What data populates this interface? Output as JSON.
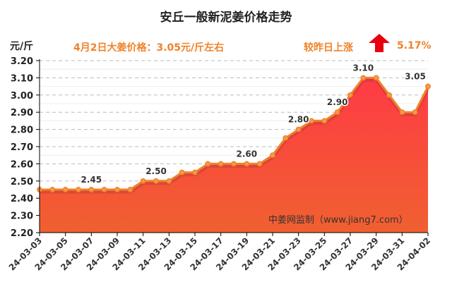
{
  "chart_data": {
    "type": "area",
    "title": "安丘一般新泥姜价格走势",
    "ylabel": "元/斤",
    "annotation_price": "4月2日大姜价格：3.05元/斤左右",
    "annotation_change_label": "较昨日上涨",
    "annotation_change_value": "5.17%",
    "change_direction": "up",
    "source": "中姜网监制（www.jiang7.com）",
    "ylim": [
      2.2,
      3.2
    ],
    "yticks": [
      "2.20",
      "2.30",
      "2.40",
      "2.50",
      "2.60",
      "2.70",
      "2.80",
      "2.90",
      "3.00",
      "3.10",
      "3.20"
    ],
    "grid": true,
    "x": [
      "24-03-03",
      "24-03-04",
      "24-03-05",
      "24-03-06",
      "24-03-07",
      "24-03-08",
      "24-03-09",
      "24-03-10",
      "24-03-11",
      "24-03-12",
      "24-03-13",
      "24-03-14",
      "24-03-15",
      "24-03-16",
      "24-03-17",
      "24-03-18",
      "24-03-19",
      "24-03-20",
      "24-03-21",
      "24-03-22",
      "24-03-23",
      "24-03-24",
      "24-03-25",
      "24-03-26",
      "24-03-27",
      "24-03-28",
      "24-03-29",
      "24-03-30",
      "24-03-31",
      "24-04-01",
      "24-04-02"
    ],
    "xticks": [
      "24-03-03",
      "24-03-05",
      "24-03-07",
      "24-03-09",
      "24-03-11",
      "24-03-13",
      "24-03-15",
      "24-03-17",
      "24-03-19",
      "24-03-21",
      "24-03-23",
      "24-03-25",
      "24-03-27",
      "24-03-29",
      "24-03-31",
      "24-04-02"
    ],
    "values": [
      2.45,
      2.45,
      2.45,
      2.45,
      2.45,
      2.45,
      2.45,
      2.45,
      2.5,
      2.5,
      2.5,
      2.55,
      2.55,
      2.6,
      2.6,
      2.6,
      2.6,
      2.6,
      2.65,
      2.75,
      2.8,
      2.85,
      2.85,
      2.9,
      3.0,
      3.1,
      3.1,
      3.0,
      2.9,
      2.9,
      3.05
    ],
    "data_labels": [
      {
        "x": "24-03-07",
        "text": "2.45"
      },
      {
        "x": "24-03-12",
        "text": "2.50"
      },
      {
        "x": "24-03-19",
        "text": "2.60"
      },
      {
        "x": "24-03-23",
        "text": "2.80"
      },
      {
        "x": "24-03-26",
        "text": "2.90"
      },
      {
        "x": "24-03-28",
        "text": "3.10"
      },
      {
        "x": "24-04-02",
        "text": "3.05"
      }
    ],
    "colors": {
      "line": "#f0822a",
      "fill_top": "#ff3b45",
      "fill_bottom": "#f06030",
      "accent_text": "#f0822a",
      "arrow": "#e8000f"
    }
  }
}
